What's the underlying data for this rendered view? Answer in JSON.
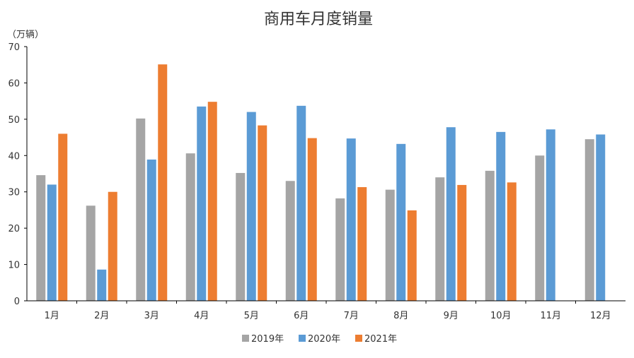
{
  "chart_data": {
    "type": "bar",
    "title": "商用车月度销量",
    "ylabel": "（万辆）",
    "xlabel": "",
    "categories": [
      "1月",
      "2月",
      "3月",
      "4月",
      "5月",
      "6月",
      "7月",
      "8月",
      "9月",
      "10月",
      "11月",
      "12月"
    ],
    "series": [
      {
        "name": "2019年",
        "color": "#a5a5a5",
        "values": [
          34.6,
          26.2,
          50.2,
          40.6,
          35.2,
          33.0,
          28.2,
          30.6,
          34.0,
          35.8,
          40.0,
          44.5
        ]
      },
      {
        "name": "2020年",
        "color": "#5b9bd5",
        "values": [
          32.0,
          8.6,
          38.9,
          53.5,
          52.0,
          53.7,
          44.7,
          43.2,
          47.8,
          46.5,
          47.2,
          45.8
        ]
      },
      {
        "name": "2021年",
        "color": "#ed7d31",
        "values": [
          46.0,
          30.0,
          65.1,
          54.8,
          48.3,
          44.8,
          31.3,
          24.9,
          31.9,
          32.6,
          null,
          null
        ]
      }
    ],
    "ylim": [
      0,
      70
    ],
    "yticks": [
      0,
      10,
      20,
      30,
      40,
      50,
      60,
      70
    ],
    "grid": false,
    "legend_position": "bottom"
  }
}
